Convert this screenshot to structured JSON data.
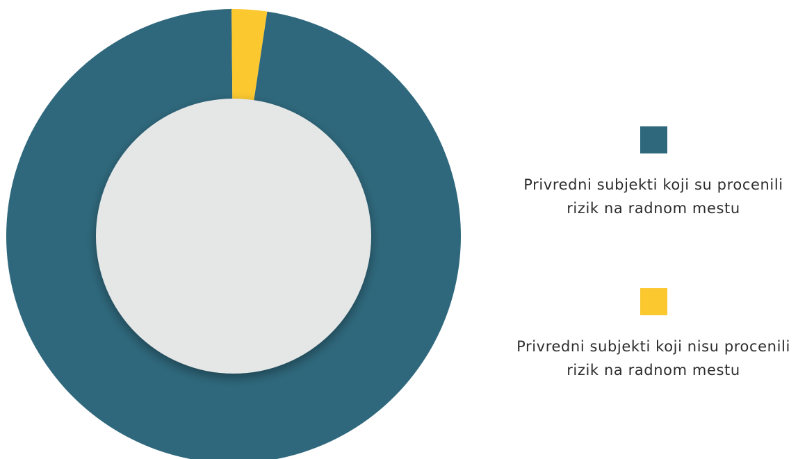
{
  "chart_data": {
    "type": "pie",
    "style": "donut",
    "slices": [
      {
        "label": "Privredni subjekti koji su procenili rizik na radnom mestu",
        "value": 97.5,
        "color": "#2f687c"
      },
      {
        "label": "Privredni subjekti koji nisu procenili rizik na radnom mestu",
        "value": 2.5,
        "color": "#fbc82f"
      }
    ],
    "legend_position": "right",
    "center_color": "#e5e6e6"
  }
}
